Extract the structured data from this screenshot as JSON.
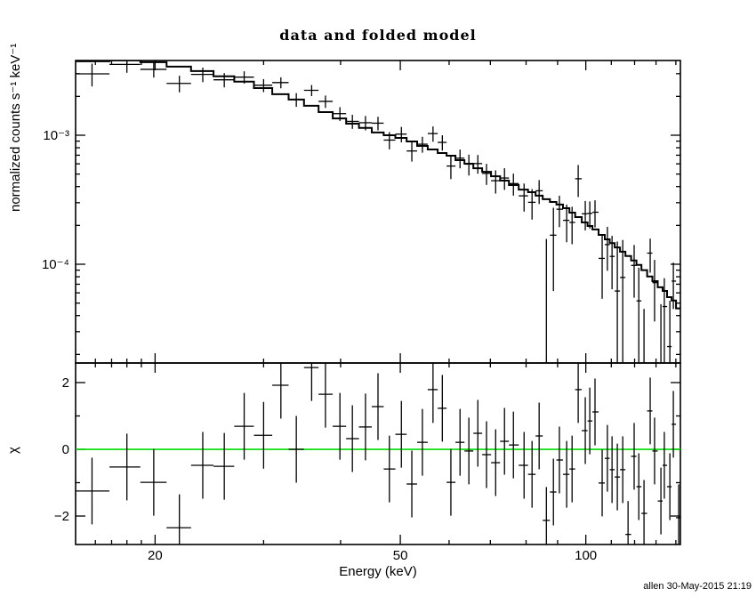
{
  "watermark": "allen 30-May-2015 21:19",
  "chart_data": {
    "type": "scatter",
    "title": "data and folded model",
    "xlabel": "Energy (keV)",
    "xscale": "log",
    "xlim": [
      14.86,
      142.4
    ],
    "xticks_major": [
      20,
      50,
      100
    ],
    "xtick_labels": [
      "20",
      "50",
      "100"
    ],
    "xticks_minor": [
      16,
      17,
      18,
      19,
      30,
      40,
      60,
      70,
      80,
      90,
      110,
      120,
      130,
      140
    ],
    "grid": false,
    "legend": "none",
    "panels": [
      {
        "name": "spectrum",
        "ylabel": "normalized counts s⁻¹ keV⁻¹",
        "yscale": "log",
        "ylim": [
          1.716e-05,
          0.003795
        ],
        "yticks_major": [
          0.001,
          0.0001
        ],
        "ytick_labels": [
          "10⁻³",
          "10⁻⁴"
        ]
      },
      {
        "name": "chi-residuals",
        "ylabel": "χ",
        "yscale": "linear",
        "ylim": [
          -2.853,
          2.587
        ],
        "yticks_major": [
          2,
          0,
          -2
        ],
        "ytick_labels": [
          "2",
          "0",
          "−2"
        ],
        "yticks_minor": [
          1,
          -1
        ],
        "zero_line_y": 0
      }
    ],
    "colors": {
      "data": "#000000",
      "model": "#000000",
      "zero_line": "#00dd00",
      "frame": "#000000"
    },
    "series": {
      "energy_kev": [
        15.8,
        18.0,
        19.9,
        21.9,
        23.9,
        25.9,
        27.9,
        30.0,
        32.0,
        33.9,
        35.9,
        37.8,
        39.9,
        41.8,
        43.9,
        46.0,
        48.0,
        50.2,
        52.2,
        54.3,
        56.5,
        58.5,
        60.4,
        62.5,
        64.6,
        66.8,
        69.0,
        71.4,
        73.8,
        76.3,
        79.4,
        81.8,
        84.0,
        86.3,
        88.6,
        90.6,
        93.1,
        95.0,
        97.2,
        99.8,
        101.5,
        103.5,
        106.3,
        108.4,
        110.3,
        112.5,
        114.8,
        117.1,
        119.8,
        121.9,
        124.3,
        127.2,
        129.3,
        132.4,
        134.1,
        136.9,
        138.7,
        141.5
      ],
      "data_flux": [
        0.00299,
        0.00354,
        0.00324,
        0.00252,
        0.00296,
        0.00269,
        0.00282,
        0.00244,
        0.00256,
        0.00189,
        0.00223,
        0.00183,
        0.00147,
        0.00128,
        0.00125,
        0.00124,
        0.000917,
        0.00102,
        0.000755,
        0.000852,
        0.00103,
        0.00088,
        0.000577,
        0.000664,
        0.000597,
        0.000603,
        0.000506,
        0.000444,
        0.000466,
        0.000422,
        0.000339,
        0.000302,
        0.000371,
        1.3e-05,
        0.000168,
        0.000267,
        0.000219,
        0.000211,
        0.00046,
        0.000246,
        0.000248,
        0.000253,
        0.000111,
        0.000142,
        0.000115,
        6.2e-05,
        7.9e-05,
        -4.7e-05,
        9.8e-05,
        5.2e-05,
        -5e-06,
        0.000122,
        7.2e-05,
        1.7e-05,
        4.7e-05,
        2.3e-05,
        7.4e-05,
        -1e-05
      ],
      "flux_err": [
        0.0006,
        0.00049,
        0.00044,
        0.00037,
        0.00038,
        0.00034,
        0.00031,
        0.00028,
        0.00025,
        0.00023,
        0.00022,
        0.0002,
        0.00018,
        0.00016,
        0.00016,
        0.00015,
        0.00014,
        0.00014,
        0.00013,
        0.00012,
        0.00014,
        0.00012,
        0.00012,
        0.00011,
        0.00011,
        0.0001,
        9.4e-05,
        9.1e-05,
        8.9e-05,
        8.2e-05,
        8.3e-05,
        8e-05,
        7.8e-05,
        0.000144,
        0.000106,
        7.3e-05,
        7.1e-05,
        6.8e-05,
        0.000128,
        6.3e-05,
        5.9e-05,
        6e-05,
        5.7e-05,
        5.3e-05,
        5.1e-05,
        8.8e-05,
        7.5e-05,
        6.4e-05,
        4.3e-05,
        4.2e-05,
        5e-05,
        3.6e-05,
        3.6e-05,
        3.2e-05,
        3.1e-05,
        2.9e-05,
        2.9e-05,
        2.7e-05
      ],
      "model_flux": [
        0.00374,
        0.0038,
        0.00368,
        0.0034,
        0.00314,
        0.00286,
        0.0026,
        0.00232,
        0.00208,
        0.00189,
        0.00169,
        0.00151,
        0.00135,
        0.00123,
        0.00114,
        0.00105,
        0.001,
        0.000953,
        0.000895,
        0.000826,
        0.000776,
        0.000728,
        0.000694,
        0.000641,
        0.000602,
        0.000555,
        0.000521,
        0.000481,
        0.000445,
        0.000411,
        0.000379,
        0.000362,
        0.00034,
        0.000319,
        0.000304,
        0.00029,
        0.000272,
        0.000251,
        0.000232,
        0.000211,
        0.000198,
        0.000186,
        0.000169,
        0.000156,
        0.000146,
        0.000135,
        0.000125,
        0.000116,
        0.000107,
        9.89e-05,
        9e-05,
        8.04e-05,
        7.4e-05,
        6.63e-05,
        6.21e-05,
        5.56e-05,
        5.24e-05,
        4.55e-05
      ],
      "chi": [
        -1.25,
        -0.53,
        -0.99,
        -2.35,
        -0.48,
        -0.51,
        0.69,
        0.42,
        1.92,
        0.0,
        2.45,
        1.65,
        0.69,
        0.32,
        0.67,
        1.28,
        -0.59,
        0.45,
        -1.04,
        0.21,
        1.79,
        1.23,
        -0.99,
        0.21,
        -0.05,
        0.48,
        -0.16,
        -0.4,
        0.24,
        0.13,
        -0.48,
        -0.75,
        0.4,
        -2.13,
        -1.28,
        -0.32,
        -0.75,
        -0.59,
        1.79,
        0.56,
        0.85,
        1.12,
        -1.01,
        -0.27,
        -0.61,
        -0.83,
        -0.61,
        -2.55,
        -0.21,
        -1.12,
        -1.92,
        1.15,
        -0.05,
        -1.55,
        -0.48,
        -1.12,
        0.75,
        -2.05
      ],
      "chi_err": 1.0
    }
  }
}
